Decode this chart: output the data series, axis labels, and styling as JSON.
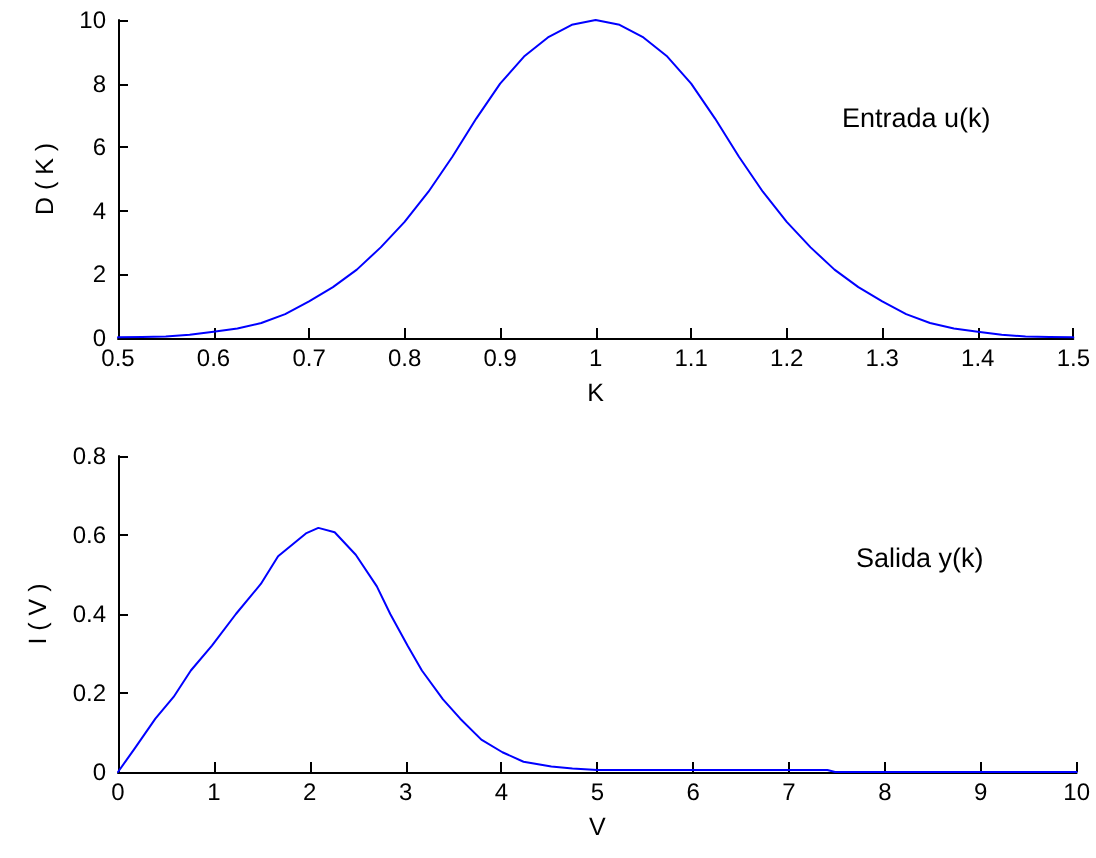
{
  "chart_data": [
    {
      "type": "line",
      "xlabel": "K",
      "ylabel": "D ( K )",
      "annotations": [
        "Entrada u(k)"
      ],
      "color": "#0000ff",
      "marker": "none",
      "grid": false,
      "x": [
        0.5,
        0.525,
        0.55,
        0.575,
        0.6,
        0.625,
        0.65,
        0.675,
        0.7,
        0.725,
        0.75,
        0.775,
        0.8,
        0.825,
        0.85,
        0.875,
        0.9,
        0.925,
        0.95,
        0.975,
        1.0,
        1.025,
        1.05,
        1.075,
        1.1,
        1.125,
        1.15,
        1.175,
        1.2,
        1.225,
        1.25,
        1.275,
        1.3,
        1.325,
        1.35,
        1.375,
        1.4,
        1.425,
        1.45,
        1.475,
        1.5
      ],
      "values": [
        0.02,
        0.03,
        0.05,
        0.1,
        0.2,
        0.3,
        0.47,
        0.75,
        1.15,
        1.6,
        2.15,
        2.85,
        3.65,
        4.6,
        5.7,
        6.9,
        8.0,
        8.85,
        9.45,
        9.85,
        10,
        9.85,
        9.45,
        8.85,
        8.0,
        6.9,
        5.7,
        4.6,
        3.65,
        2.85,
        2.15,
        1.6,
        1.15,
        0.75,
        0.47,
        0.3,
        0.2,
        0.1,
        0.05,
        0.03,
        0.02
      ],
      "xlim": [
        0.5,
        1.5
      ],
      "ylim": [
        0,
        10
      ],
      "xticks": [
        0.5,
        0.6,
        0.7,
        0.8,
        0.9,
        1,
        1.1,
        1.2,
        1.3,
        1.4,
        1.5
      ],
      "yticks": [
        0,
        2,
        4,
        6,
        8,
        10
      ]
    },
    {
      "type": "line",
      "xlabel": "V",
      "ylabel": "I ( V )",
      "annotations": [
        "Salida y(k)"
      ],
      "color": "#0000ff",
      "marker": "none",
      "grid": false,
      "x": [
        0,
        0.175,
        0.39,
        0.58,
        0.76,
        0.98,
        1.23,
        1.49,
        1.67,
        1.96,
        2.09,
        2.26,
        2.48,
        2.7,
        2.84,
        3.02,
        3.17,
        3.39,
        3.57,
        3.79,
        4.01,
        4.23,
        4.52,
        4.74,
        5,
        7.4,
        7.48,
        10
      ],
      "values": [
        0,
        0.06,
        0.135,
        0.19,
        0.257,
        0.32,
        0.4,
        0.476,
        0.546,
        0.604,
        0.618,
        0.607,
        0.55,
        0.47,
        0.4,
        0.32,
        0.257,
        0.184,
        0.135,
        0.082,
        0.05,
        0.026,
        0.014,
        0.009,
        0.005,
        0.005,
        0,
        0
      ],
      "xlim": [
        0,
        10
      ],
      "ylim": [
        0,
        0.8
      ],
      "xticks": [
        0,
        1,
        2,
        3,
        4,
        5,
        6,
        7,
        8,
        9,
        10
      ],
      "yticks": [
        0,
        0.2,
        0.4,
        0.6,
        0.8
      ]
    }
  ]
}
